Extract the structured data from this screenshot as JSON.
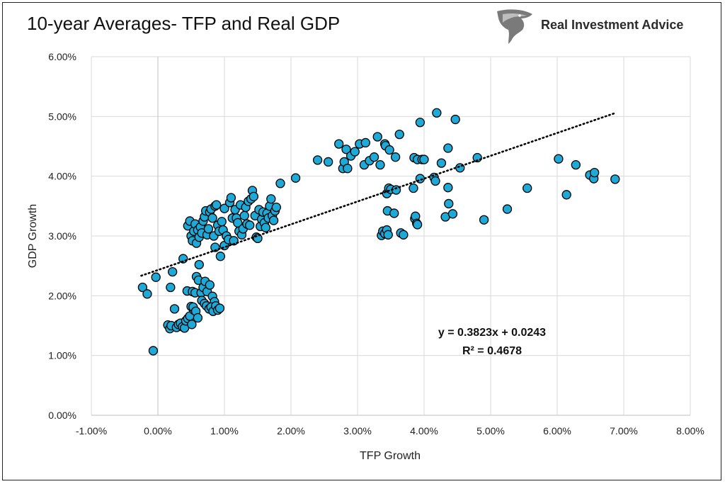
{
  "title": "10-year Averages- TFP and Real GDP",
  "brand": {
    "name": "Real Investment Advice",
    "logo_icon": "eagle-head-icon"
  },
  "colors": {
    "marker_fill": "#1fa9d6",
    "marker_stroke": "#000000",
    "grid": "#d9d9d9",
    "trendline": "#000000"
  },
  "chart_data": {
    "type": "scatter",
    "title": "10-year Averages- TFP and Real GDP",
    "xlabel": "TFP Growth",
    "ylabel": "GDP Growth",
    "xlim": [
      -0.01,
      0.08
    ],
    "ylim": [
      0.0,
      0.06
    ],
    "x_ticks": [
      "-1.00%",
      "0.00%",
      "1.00%",
      "2.00%",
      "3.00%",
      "4.00%",
      "5.00%",
      "6.00%",
      "7.00%",
      "8.00%"
    ],
    "y_ticks": [
      "0.00%",
      "1.00%",
      "2.00%",
      "3.00%",
      "4.00%",
      "5.00%",
      "6.00%"
    ],
    "grid": true,
    "legend": "none",
    "trendline": {
      "type": "linear",
      "slope": 0.3823,
      "intercept": 0.0243,
      "x_range": [
        -0.0025,
        0.0685
      ],
      "style": "dotted"
    },
    "annotations": [
      "y = 0.3823x + 0.0243",
      "R² = 0.4678"
    ],
    "points": [
      [
        -0.0023,
        0.0214
      ],
      [
        -0.0016,
        0.0203
      ],
      [
        -0.0007,
        0.0108
      ],
      [
        -0.0003,
        0.0231
      ],
      [
        0.0015,
        0.0151
      ],
      [
        0.0018,
        0.0145
      ],
      [
        0.002,
        0.015
      ],
      [
        0.0019,
        0.0214
      ],
      [
        0.0022,
        0.024
      ],
      [
        0.0025,
        0.0178
      ],
      [
        0.0028,
        0.0147
      ],
      [
        0.0031,
        0.0152
      ],
      [
        0.0034,
        0.0154
      ],
      [
        0.0037,
        0.0148
      ],
      [
        0.004,
        0.0146
      ],
      [
        0.0042,
        0.0158
      ],
      [
        0.0045,
        0.0162
      ],
      [
        0.0048,
        0.0166
      ],
      [
        0.0051,
        0.0152
      ],
      [
        0.0054,
        0.0176
      ],
      [
        0.005,
        0.0182
      ],
      [
        0.0053,
        0.0181
      ],
      [
        0.0057,
        0.0174
      ],
      [
        0.006,
        0.0163
      ],
      [
        0.0044,
        0.0208
      ],
      [
        0.0052,
        0.0207
      ],
      [
        0.0056,
        0.0205
      ],
      [
        0.0058,
        0.0232
      ],
      [
        0.0061,
        0.0226
      ],
      [
        0.0065,
        0.0205
      ],
      [
        0.0068,
        0.0214
      ],
      [
        0.0071,
        0.0224
      ],
      [
        0.0074,
        0.0207
      ],
      [
        0.0078,
        0.0218
      ],
      [
        0.0082,
        0.0199
      ],
      [
        0.0085,
        0.019
      ],
      [
        0.0066,
        0.0192
      ],
      [
        0.007,
        0.0187
      ],
      [
        0.0073,
        0.0183
      ],
      [
        0.0077,
        0.0178
      ],
      [
        0.008,
        0.0181
      ],
      [
        0.0083,
        0.0174
      ],
      [
        0.0087,
        0.0183
      ],
      [
        0.009,
        0.0176
      ],
      [
        0.0093,
        0.0179
      ],
      [
        0.0062,
        0.0252
      ],
      [
        0.0038,
        0.0262
      ],
      [
        0.0045,
        0.0317
      ],
      [
        0.0048,
        0.0325
      ],
      [
        0.005,
        0.03
      ],
      [
        0.0052,
        0.0292
      ],
      [
        0.0054,
        0.0308
      ],
      [
        0.0056,
        0.032
      ],
      [
        0.0058,
        0.0288
      ],
      [
        0.006,
        0.031
      ],
      [
        0.0062,
        0.0298
      ],
      [
        0.0064,
        0.0315
      ],
      [
        0.0066,
        0.0305
      ],
      [
        0.0068,
        0.0325
      ],
      [
        0.007,
        0.0332
      ],
      [
        0.0072,
        0.0342
      ],
      [
        0.0074,
        0.0302
      ],
      [
        0.0076,
        0.0312
      ],
      [
        0.0078,
        0.034
      ],
      [
        0.008,
        0.0345
      ],
      [
        0.0082,
        0.033
      ],
      [
        0.0084,
        0.03
      ],
      [
        0.0086,
        0.035
      ],
      [
        0.0088,
        0.0352
      ],
      [
        0.009,
        0.0318
      ],
      [
        0.0092,
        0.0308
      ],
      [
        0.0094,
        0.0266
      ],
      [
        0.0096,
        0.0324
      ],
      [
        0.0098,
        0.031
      ],
      [
        0.01,
        0.0346
      ],
      [
        0.0086,
        0.0281
      ],
      [
        0.01,
        0.0284
      ],
      [
        0.0103,
        0.03
      ],
      [
        0.0106,
        0.0294
      ],
      [
        0.0108,
        0.0356
      ],
      [
        0.011,
        0.0364
      ],
      [
        0.0112,
        0.033
      ],
      [
        0.0114,
        0.0292
      ],
      [
        0.0116,
        0.0344
      ],
      [
        0.0118,
        0.033
      ],
      [
        0.012,
        0.0322
      ],
      [
        0.0122,
        0.0308
      ],
      [
        0.0124,
        0.0352
      ],
      [
        0.0126,
        0.0302
      ],
      [
        0.0128,
        0.0312
      ],
      [
        0.013,
        0.0334
      ],
      [
        0.0132,
        0.0348
      ],
      [
        0.0134,
        0.032
      ],
      [
        0.0136,
        0.0358
      ],
      [
        0.0138,
        0.0318
      ],
      [
        0.014,
        0.0362
      ],
      [
        0.0142,
        0.0376
      ],
      [
        0.0144,
        0.0366
      ],
      [
        0.0146,
        0.0334
      ],
      [
        0.0148,
        0.0298
      ],
      [
        0.015,
        0.0296
      ],
      [
        0.0152,
        0.0344
      ],
      [
        0.0154,
        0.0316
      ],
      [
        0.0156,
        0.0328
      ],
      [
        0.0158,
        0.034
      ],
      [
        0.016,
        0.0322
      ],
      [
        0.0162,
        0.0314
      ],
      [
        0.0164,
        0.0338
      ],
      [
        0.0166,
        0.033
      ],
      [
        0.0168,
        0.035
      ],
      [
        0.017,
        0.0362
      ],
      [
        0.0172,
        0.0334
      ],
      [
        0.0174,
        0.0326
      ],
      [
        0.0176,
        0.0342
      ],
      [
        0.0178,
        0.0348
      ],
      [
        0.0184,
        0.0388
      ],
      [
        0.0207,
        0.0397
      ],
      [
        0.024,
        0.0427
      ],
      [
        0.0256,
        0.0424
      ],
      [
        0.0272,
        0.0454
      ],
      [
        0.0278,
        0.0413
      ],
      [
        0.028,
        0.0424
      ],
      [
        0.0283,
        0.0445
      ],
      [
        0.0285,
        0.0413
      ],
      [
        0.029,
        0.0434
      ],
      [
        0.0296,
        0.0441
      ],
      [
        0.0303,
        0.0454
      ],
      [
        0.031,
        0.0419
      ],
      [
        0.0312,
        0.0456
      ],
      [
        0.0318,
        0.0426
      ],
      [
        0.0325,
        0.0432
      ],
      [
        0.033,
        0.0466
      ],
      [
        0.0334,
        0.0419
      ],
      [
        0.0341,
        0.0454
      ],
      [
        0.0342,
        0.0451
      ],
      [
        0.0348,
        0.0444
      ],
      [
        0.0357,
        0.0432
      ],
      [
        0.0363,
        0.047
      ],
      [
        0.0385,
        0.0431
      ],
      [
        0.039,
        0.0428
      ],
      [
        0.0394,
        0.049
      ],
      [
        0.0397,
        0.0428
      ],
      [
        0.04,
        0.0428
      ],
      [
        0.0419,
        0.0506
      ],
      [
        0.0426,
        0.0422
      ],
      [
        0.0436,
        0.0447
      ],
      [
        0.0447,
        0.0495
      ],
      [
        0.0454,
        0.0414
      ],
      [
        0.048,
        0.0431
      ],
      [
        0.0336,
        0.0301
      ],
      [
        0.0338,
        0.0308
      ],
      [
        0.0341,
        0.0304
      ],
      [
        0.0344,
        0.031
      ],
      [
        0.0346,
        0.0302
      ],
      [
        0.0344,
        0.0371
      ],
      [
        0.0347,
        0.038
      ],
      [
        0.035,
        0.0378
      ],
      [
        0.0345,
        0.0342
      ],
      [
        0.0355,
        0.0338
      ],
      [
        0.0358,
        0.0377
      ],
      [
        0.0365,
        0.0305
      ],
      [
        0.0369,
        0.0302
      ],
      [
        0.0384,
        0.038
      ],
      [
        0.0386,
        0.0329
      ],
      [
        0.0387,
        0.0333
      ],
      [
        0.0389,
        0.0321
      ],
      [
        0.039,
        0.0319
      ],
      [
        0.0394,
        0.0396
      ],
      [
        0.0415,
        0.0398
      ],
      [
        0.0417,
        0.0392
      ],
      [
        0.0432,
        0.0332
      ],
      [
        0.0436,
        0.0381
      ],
      [
        0.0437,
        0.0354
      ],
      [
        0.0443,
        0.0337
      ],
      [
        0.049,
        0.0327
      ],
      [
        0.0525,
        0.0345
      ],
      [
        0.0555,
        0.038
      ],
      [
        0.0602,
        0.0429
      ],
      [
        0.0614,
        0.0369
      ],
      [
        0.0628,
        0.0419
      ],
      [
        0.0649,
        0.0402
      ],
      [
        0.0655,
        0.0396
      ],
      [
        0.0656,
        0.0406
      ],
      [
        0.0687,
        0.0395
      ]
    ]
  }
}
